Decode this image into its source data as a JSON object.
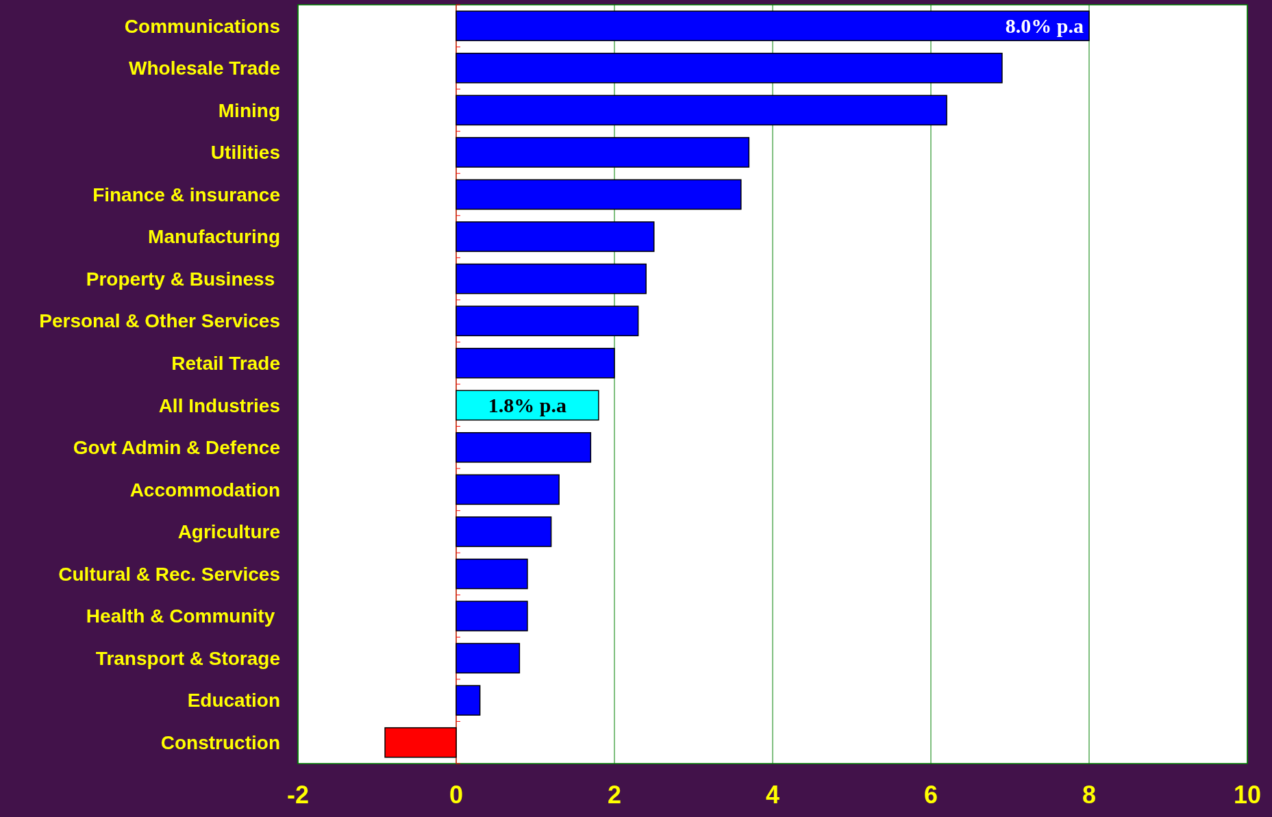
{
  "chart_data": {
    "type": "bar",
    "orientation": "horizontal",
    "categories": [
      "Communications",
      "Wholesale Trade",
      "Mining",
      "Utilities",
      "Finance & insurance",
      "Manufacturing",
      "Property & Business ",
      "Personal & Other Services",
      "Retail Trade",
      "All Industries",
      "Govt Admin & Defence",
      "Accommodation",
      "Agriculture",
      "Cultural & Rec. Services",
      "Health & Community ",
      "Transport & Storage",
      "Education",
      "Construction"
    ],
    "values": [
      8.0,
      6.9,
      6.2,
      3.7,
      3.6,
      2.5,
      2.4,
      2.3,
      2.0,
      1.8,
      1.7,
      1.3,
      1.2,
      0.9,
      0.9,
      0.8,
      0.3,
      -0.9
    ],
    "colors": [
      "#0000ff",
      "#0000ff",
      "#0000ff",
      "#0000ff",
      "#0000ff",
      "#0000ff",
      "#0000ff",
      "#0000ff",
      "#0000ff",
      "#00ffff",
      "#0000ff",
      "#0000ff",
      "#0000ff",
      "#0000ff",
      "#0000ff",
      "#0000ff",
      "#0000ff",
      "#ff0000"
    ],
    "value_labels": [
      "8.0% p.a",
      null,
      null,
      null,
      null,
      null,
      null,
      null,
      null,
      "1.8% p.a",
      null,
      null,
      null,
      null,
      null,
      null,
      null,
      null
    ],
    "xlim": [
      -2,
      10
    ],
    "xticks": [
      -2,
      0,
      2,
      4,
      6,
      8,
      10
    ],
    "grid": "x",
    "ref_lines": [
      {
        "axis": "x",
        "value": 0,
        "color": "#ff0000"
      }
    ]
  }
}
